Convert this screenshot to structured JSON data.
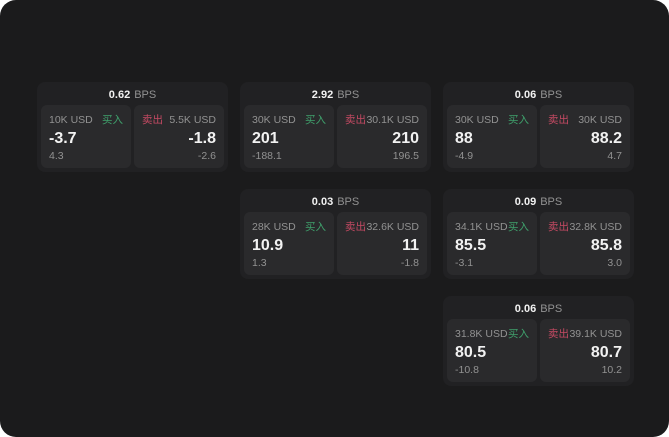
{
  "labels": {
    "bps_unit": "BPS",
    "buy": "买入",
    "sell": "卖出"
  },
  "colors": {
    "bg": "#1b1b1c",
    "card": "#212123",
    "panel": "#2a2a2c",
    "buy_green": "#3fa06c",
    "sell_red": "#c54a63",
    "text_primary": "#f2f2f2",
    "text_secondary": "#929292"
  },
  "cards": [
    {
      "row": 1,
      "col": 1,
      "bps": "0.62",
      "buy": {
        "amount": "10K USD",
        "price": "-3.7",
        "sub": "4.3"
      },
      "sell": {
        "amount": "5.5K USD",
        "price": "-1.8",
        "sub": "-2.6"
      }
    },
    {
      "row": 1,
      "col": 2,
      "bps": "2.92",
      "buy": {
        "amount": "30K USD",
        "price": "201",
        "sub": "-188.1"
      },
      "sell": {
        "amount": "30.1K USD",
        "price": "210",
        "sub": "196.5"
      }
    },
    {
      "row": 1,
      "col": 3,
      "bps": "0.06",
      "buy": {
        "amount": "30K USD",
        "price": "88",
        "sub": "-4.9"
      },
      "sell": {
        "amount": "30K USD",
        "price": "88.2",
        "sub": "4.7"
      }
    },
    {
      "row": 2,
      "col": 2,
      "bps": "0.03",
      "buy": {
        "amount": "28K USD",
        "price": "10.9",
        "sub": "1.3"
      },
      "sell": {
        "amount": "32.6K USD",
        "price": "11",
        "sub": "-1.8"
      }
    },
    {
      "row": 2,
      "col": 3,
      "bps": "0.09",
      "buy": {
        "amount": "34.1K USD",
        "price": "85.5",
        "sub": "-3.1"
      },
      "sell": {
        "amount": "32.8K USD",
        "price": "85.8",
        "sub": "3.0"
      }
    },
    {
      "row": 3,
      "col": 3,
      "bps": "0.06",
      "buy": {
        "amount": "31.8K USD",
        "price": "80.5",
        "sub": "-10.8"
      },
      "sell": {
        "amount": "39.1K USD",
        "price": "80.7",
        "sub": "10.2"
      }
    }
  ]
}
